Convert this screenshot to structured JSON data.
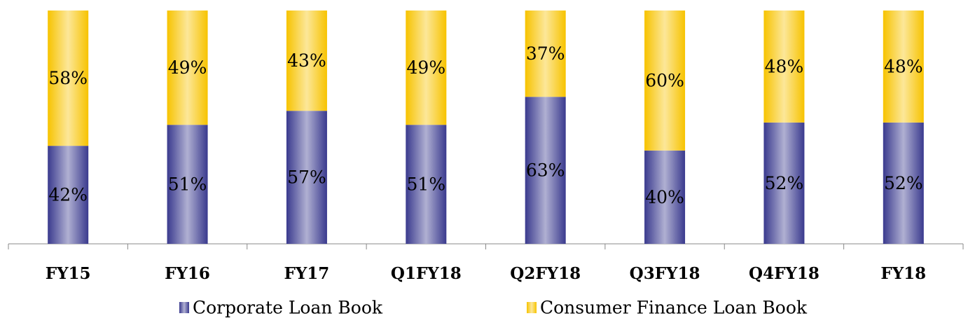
{
  "chart_data": {
    "type": "bar",
    "stacked": "percent",
    "categories": [
      "FY15",
      "FY16",
      "FY17",
      "Q1FY18",
      "Q2FY18",
      "Q3FY18",
      "Q4FY18",
      "FY18"
    ],
    "series": [
      {
        "name": "Corporate Loan Book",
        "color": "#3a3a8e",
        "values": [
          42,
          51,
          57,
          51,
          63,
          40,
          52,
          52
        ],
        "value_labels": [
          "42%",
          "51%",
          "57%",
          "51%",
          "63%",
          "40%",
          "52%",
          "52%"
        ]
      },
      {
        "name": "Consumer Finance Loan Book",
        "color": "#f7c300",
        "values": [
          58,
          49,
          43,
          49,
          37,
          60,
          48,
          48
        ],
        "value_labels": [
          "58%",
          "49%",
          "43%",
          "49%",
          "37%",
          "60%",
          "48%",
          "48%"
        ]
      }
    ],
    "legend": "bottom"
  }
}
